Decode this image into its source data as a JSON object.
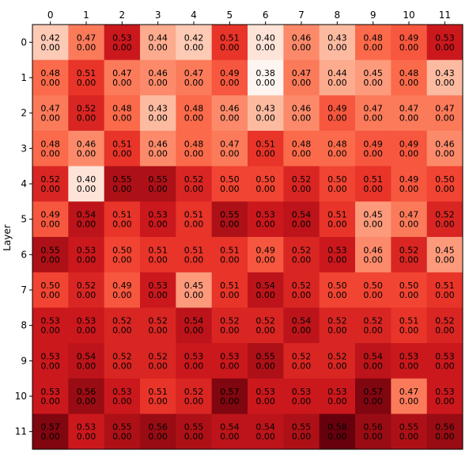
{
  "chart_data": {
    "type": "heatmap",
    "title": "",
    "xlabel": "",
    "ylabel": "Layer",
    "x_categories": [
      "0",
      "1",
      "2",
      "3",
      "4",
      "5",
      "6",
      "7",
      "8",
      "9",
      "10",
      "11"
    ],
    "y_categories": [
      "0",
      "1",
      "2",
      "3",
      "4",
      "5",
      "6",
      "7",
      "8",
      "9",
      "10",
      "11"
    ],
    "x_axis_position": "top",
    "colormap": "Reds",
    "value_range": [
      0.38,
      0.58
    ],
    "values": [
      [
        0.42,
        0.47,
        0.53,
        0.44,
        0.42,
        0.51,
        0.4,
        0.46,
        0.43,
        0.48,
        0.49,
        0.53
      ],
      [
        0.48,
        0.51,
        0.47,
        0.46,
        0.47,
        0.49,
        0.38,
        0.47,
        0.44,
        0.45,
        0.48,
        0.43
      ],
      [
        0.47,
        0.52,
        0.48,
        0.43,
        0.48,
        0.46,
        0.43,
        0.46,
        0.49,
        0.47,
        0.47,
        0.47
      ],
      [
        0.48,
        0.46,
        0.51,
        0.46,
        0.48,
        0.47,
        0.51,
        0.48,
        0.48,
        0.49,
        0.49,
        0.46
      ],
      [
        0.52,
        0.4,
        0.55,
        0.55,
        0.52,
        0.5,
        0.5,
        0.52,
        0.5,
        0.51,
        0.49,
        0.5
      ],
      [
        0.49,
        0.54,
        0.51,
        0.53,
        0.51,
        0.55,
        0.53,
        0.54,
        0.51,
        0.45,
        0.47,
        0.52
      ],
      [
        0.55,
        0.53,
        0.5,
        0.51,
        0.51,
        0.51,
        0.49,
        0.52,
        0.53,
        0.46,
        0.52,
        0.45
      ],
      [
        0.5,
        0.52,
        0.49,
        0.53,
        0.45,
        0.51,
        0.54,
        0.52,
        0.5,
        0.5,
        0.5,
        0.51
      ],
      [
        0.53,
        0.53,
        0.52,
        0.52,
        0.54,
        0.52,
        0.52,
        0.54,
        0.52,
        0.52,
        0.51,
        0.52
      ],
      [
        0.53,
        0.54,
        0.52,
        0.52,
        0.53,
        0.53,
        0.55,
        0.52,
        0.52,
        0.54,
        0.53,
        0.53
      ],
      [
        0.53,
        0.56,
        0.53,
        0.51,
        0.52,
        0.57,
        0.53,
        0.53,
        0.53,
        0.57,
        0.47,
        0.53
      ],
      [
        0.57,
        0.53,
        0.55,
        0.56,
        0.55,
        0.54,
        0.54,
        0.55,
        0.58,
        0.56,
        0.55,
        0.56
      ]
    ],
    "secondary_values": [
      [
        0.0,
        0.0,
        0.0,
        0.0,
        0.0,
        0.0,
        0.0,
        0.0,
        0.0,
        0.0,
        0.0,
        0.0
      ],
      [
        0.0,
        0.0,
        0.0,
        0.0,
        0.0,
        0.0,
        0.0,
        0.0,
        0.0,
        0.0,
        0.0,
        0.0
      ],
      [
        0.0,
        0.0,
        0.0,
        0.0,
        0.0,
        0.0,
        0.0,
        0.0,
        0.0,
        0.0,
        0.0,
        0.0
      ],
      [
        0.0,
        0.0,
        0.0,
        0.0,
        0.0,
        0.0,
        0.0,
        0.0,
        0.0,
        0.0,
        0.0,
        0.0
      ],
      [
        0.0,
        0.0,
        0.0,
        0.0,
        0.0,
        0.0,
        0.0,
        0.0,
        0.0,
        0.0,
        0.0,
        0.0
      ],
      [
        0.0,
        0.0,
        0.0,
        0.0,
        0.0,
        0.0,
        0.0,
        0.0,
        0.0,
        0.0,
        0.0,
        0.0
      ],
      [
        0.0,
        0.0,
        0.0,
        0.0,
        0.0,
        0.0,
        0.0,
        0.0,
        0.0,
        0.0,
        0.0,
        0.0
      ],
      [
        0.0,
        0.0,
        0.0,
        0.0,
        0.0,
        0.0,
        0.0,
        0.0,
        0.0,
        0.0,
        0.0,
        0.0
      ],
      [
        0.0,
        0.0,
        0.0,
        0.0,
        0.0,
        0.0,
        0.0,
        0.0,
        0.0,
        0.0,
        0.0,
        0.0
      ],
      [
        0.0,
        0.0,
        0.0,
        0.0,
        0.0,
        0.0,
        0.0,
        0.0,
        0.0,
        0.0,
        0.0,
        0.0
      ],
      [
        0.0,
        0.0,
        0.0,
        0.0,
        0.0,
        0.0,
        0.0,
        0.0,
        0.0,
        0.0,
        0.0,
        0.0
      ],
      [
        0.0,
        0.0,
        0.0,
        0.0,
        0.0,
        0.0,
        0.0,
        0.0,
        0.0,
        0.0,
        0.0,
        0.0
      ]
    ]
  }
}
